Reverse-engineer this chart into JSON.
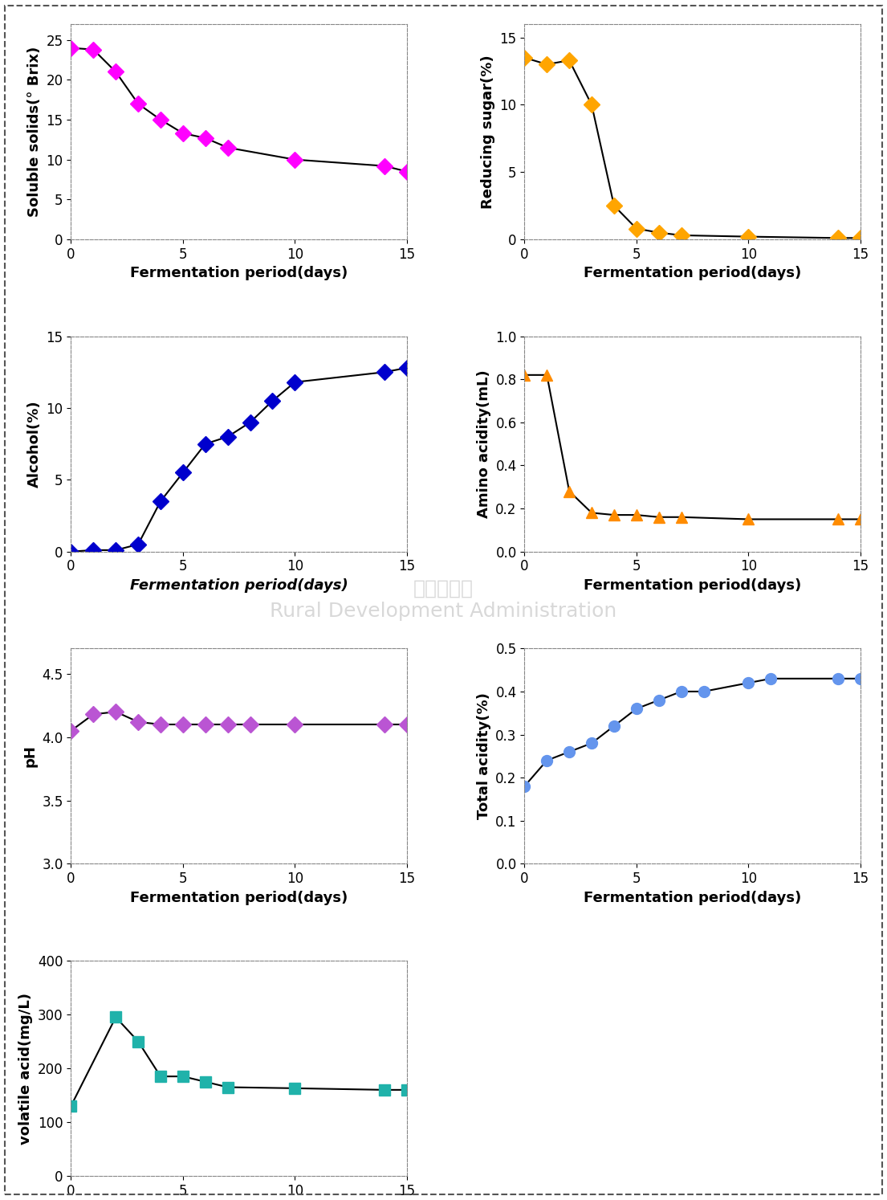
{
  "soluble_solids": {
    "x": [
      0,
      1,
      2,
      3,
      4,
      5,
      6,
      7,
      10,
      14,
      15
    ],
    "y": [
      24.0,
      23.8,
      21.0,
      17.0,
      15.0,
      13.3,
      12.7,
      11.5,
      10.0,
      9.2,
      8.5
    ],
    "ylabel": "Soluble solids(° Brix)",
    "xlabel": "Fermentation period(days)",
    "ylim": [
      0,
      27
    ],
    "yticks": [
      0,
      5,
      10,
      15,
      20,
      25
    ],
    "xlim": [
      0,
      15
    ],
    "xticks": [
      0,
      5,
      10,
      15
    ],
    "marker": "D",
    "color": "#FF00FF",
    "markersize": 10
  },
  "reducing_sugar": {
    "x": [
      0,
      1,
      2,
      3,
      4,
      5,
      6,
      7,
      10,
      14,
      15
    ],
    "y": [
      13.5,
      13.0,
      13.3,
      10.0,
      2.5,
      0.8,
      0.5,
      0.3,
      0.2,
      0.1,
      0.1
    ],
    "ylabel": "Reducing sugar(%)",
    "xlabel": "Fermentation period(days)",
    "ylim": [
      0,
      16
    ],
    "yticks": [
      0,
      5,
      10,
      15
    ],
    "xlim": [
      0,
      15
    ],
    "xticks": [
      0,
      5,
      10,
      15
    ],
    "marker": "D",
    "color": "#FFA500",
    "markersize": 10
  },
  "alcohol": {
    "x": [
      0,
      1,
      2,
      3,
      4,
      5,
      6,
      7,
      8,
      9,
      10,
      14,
      15
    ],
    "y": [
      0.0,
      0.1,
      0.1,
      0.5,
      3.5,
      5.5,
      7.5,
      8.0,
      9.0,
      10.5,
      11.8,
      12.5,
      12.8
    ],
    "ylabel": "Alcohol(%)",
    "xlabel": "Fermentation period(days)",
    "ylim": [
      0,
      15
    ],
    "yticks": [
      0,
      5,
      10,
      15
    ],
    "xlim": [
      0,
      15
    ],
    "xticks": [
      0,
      5,
      10,
      15
    ],
    "marker": "D",
    "color": "#0000CD",
    "markersize": 10
  },
  "amino_acidity": {
    "x": [
      0,
      1,
      2,
      3,
      4,
      5,
      6,
      7,
      10,
      14,
      15
    ],
    "y": [
      0.82,
      0.82,
      0.28,
      0.18,
      0.17,
      0.17,
      0.16,
      0.16,
      0.15,
      0.15,
      0.15
    ],
    "ylabel": "Amino acidity(mL)",
    "xlabel": "Fermentation period(days)",
    "ylim": [
      0.0,
      1.0
    ],
    "yticks": [
      0.0,
      0.2,
      0.4,
      0.6,
      0.8,
      1.0
    ],
    "xlim": [
      0,
      15
    ],
    "xticks": [
      0,
      5,
      10,
      15
    ],
    "marker": "^",
    "color": "#FF8C00",
    "markersize": 10
  },
  "ph": {
    "x": [
      0,
      1,
      2,
      3,
      4,
      5,
      6,
      7,
      8,
      10,
      14,
      15
    ],
    "y": [
      4.05,
      4.18,
      4.2,
      4.12,
      4.1,
      4.1,
      4.1,
      4.1,
      4.1,
      4.1,
      4.1,
      4.1
    ],
    "ylabel": "pH",
    "xlabel": "Fermentation period(days)",
    "ylim": [
      3.0,
      4.7
    ],
    "yticks": [
      3.0,
      3.5,
      4.0,
      4.5
    ],
    "xlim": [
      0,
      15
    ],
    "xticks": [
      0,
      5,
      10,
      15
    ],
    "marker": "D",
    "color": "#BA55D3",
    "markersize": 10
  },
  "total_acidity": {
    "x": [
      0,
      1,
      2,
      3,
      4,
      5,
      6,
      7,
      8,
      10,
      11,
      14,
      15
    ],
    "y": [
      0.18,
      0.24,
      0.26,
      0.28,
      0.32,
      0.36,
      0.38,
      0.4,
      0.4,
      0.42,
      0.43,
      0.43,
      0.43
    ],
    "ylabel": "Total acidity(%)",
    "xlabel": "Fermentation period(days)",
    "ylim": [
      0.0,
      0.5
    ],
    "yticks": [
      0.0,
      0.1,
      0.2,
      0.3,
      0.4,
      0.5
    ],
    "xlim": [
      0,
      15
    ],
    "xticks": [
      0,
      5,
      10,
      15
    ],
    "marker": "o",
    "color": "#6495ED",
    "markersize": 10
  },
  "volatile_acid": {
    "x": [
      0,
      2,
      3,
      4,
      5,
      6,
      7,
      10,
      14,
      15
    ],
    "y": [
      130,
      295,
      250,
      185,
      185,
      175,
      165,
      163,
      160,
      160
    ],
    "ylabel": "volatile acid(mg/L)",
    "xlabel": "Fermentation period(days)",
    "ylim": [
      0,
      400
    ],
    "yticks": [
      0,
      100,
      200,
      300,
      400
    ],
    "xlim": [
      0,
      15
    ],
    "xticks": [
      0,
      5,
      10,
      15
    ],
    "marker": "s",
    "color": "#20B2AA",
    "markersize": 10
  },
  "background_color": "#ffffff",
  "line_color": "#000000",
  "border_color": "#555555"
}
